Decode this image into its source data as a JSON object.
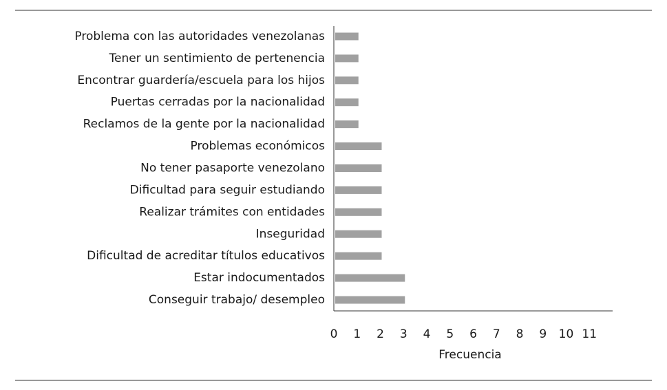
{
  "chart_data": {
    "type": "hbar",
    "categories": [
      "Problema con las autoridades venezolanas",
      "Tener un sentimiento de pertenencia",
      "Encontrar guardería/escuela para los hijos",
      "Puertas cerradas por la nacionalidad",
      "Reclamos de la gente por la nacionalidad",
      "Problemas económicos",
      "No tener pasaporte venezolano",
      "Dificultad para seguir estudiando",
      "Realizar trámites con entidades",
      "Inseguridad",
      "Dificultad de acreditar títulos educativos",
      "Estar indocumentados",
      "Conseguir trabajo/ desempleo"
    ],
    "values": [
      1,
      1,
      1,
      1,
      1,
      2,
      2,
      2,
      2,
      2,
      2,
      3,
      3
    ],
    "color": "#a0a0a0",
    "xlabel": "Frecuencia",
    "xlim": [
      0,
      12
    ],
    "xticks": [
      0,
      1,
      2,
      3,
      4,
      5,
      6,
      7,
      8,
      9,
      10,
      11
    ],
    "grid": false
  }
}
